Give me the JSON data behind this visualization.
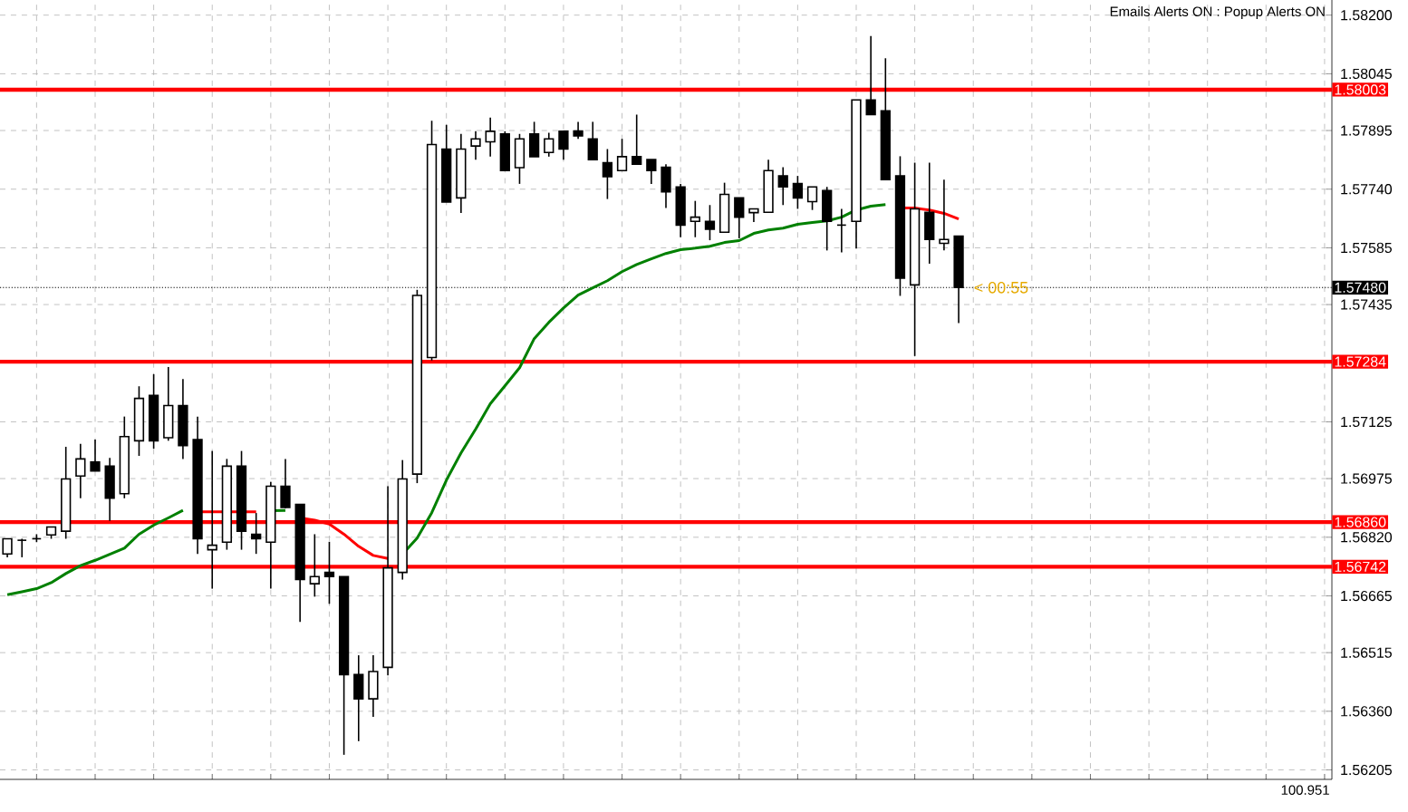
{
  "chart_data": {
    "type": "candlestick",
    "categories": [
      null,
      null,
      null,
      null,
      null,
      null,
      null,
      null,
      null,
      null,
      null,
      null,
      null,
      null,
      null,
      null,
      null,
      null,
      null,
      null,
      null,
      null,
      null,
      null,
      null,
      null,
      null,
      null,
      null,
      null,
      null,
      null,
      null,
      null,
      null,
      null,
      null,
      null,
      null,
      null,
      null,
      null,
      null,
      null,
      null,
      null,
      null,
      null,
      null,
      null,
      null,
      null,
      null,
      null,
      null,
      null,
      null,
      null,
      null,
      null,
      null,
      null,
      null,
      null,
      null,
      null,
      null,
      null,
      null,
      null,
      null,
      null,
      null,
      null,
      null,
      null,
      null,
      null,
      null,
      null,
      null,
      null,
      null,
      null,
      null,
      null,
      null,
      null,
      null,
      null,
      null
    ],
    "ohlc": [
      [
        1.56776,
        1.56816,
        1.56767,
        1.56816
      ],
      [
        1.56812,
        1.56816,
        1.56767,
        1.56812
      ],
      [
        1.56816,
        1.56828,
        1.56807,
        1.56816
      ],
      [
        1.56826,
        1.56847,
        1.56816,
        1.56847
      ],
      [
        1.56836,
        1.57059,
        1.56816,
        1.56974
      ],
      [
        1.56982,
        1.57067,
        1.56923,
        1.57027
      ],
      [
        1.57019,
        1.57078,
        1.56995,
        1.56995
      ],
      [
        1.57008,
        1.5703,
        1.56863,
        1.56923
      ],
      [
        1.56935,
        1.57139,
        1.56923,
        1.57086
      ],
      [
        1.57075,
        1.57219,
        1.57035,
        1.57187
      ],
      [
        1.57195,
        1.57251,
        1.57054,
        1.57075
      ],
      [
        1.57083,
        1.5727,
        1.57075,
        1.57168
      ],
      [
        1.57168,
        1.57238,
        1.57027,
        1.57062
      ],
      [
        1.57078,
        1.57139,
        1.56776,
        1.56816
      ],
      [
        1.56787,
        1.57048,
        1.56684,
        1.56799
      ],
      [
        1.56807,
        1.57027,
        1.56787,
        1.57008
      ],
      [
        1.57008,
        1.57048,
        1.56787,
        1.56836
      ],
      [
        1.56828,
        1.56884,
        1.56776,
        1.56816
      ],
      [
        1.56807,
        1.56966,
        1.56684,
        1.56955
      ],
      [
        1.56955,
        1.57027,
        1.56896,
        1.56899
      ],
      [
        1.56907,
        1.56907,
        1.56596,
        1.56708
      ],
      [
        1.56697,
        1.56828,
        1.56663,
        1.56716
      ],
      [
        1.56727,
        1.56808,
        1.56644,
        1.56716
      ],
      [
        1.56716,
        1.56716,
        1.56245,
        1.56457
      ],
      [
        1.56457,
        1.56508,
        1.56281,
        1.56393
      ],
      [
        1.56393,
        1.56508,
        1.56345,
        1.56465
      ],
      [
        1.56476,
        1.56955,
        1.56455,
        1.56739
      ],
      [
        1.56727,
        1.57024,
        1.56708,
        1.56974
      ],
      [
        1.56987,
        1.57474,
        1.56963,
        1.57459
      ],
      [
        1.57295,
        1.57921,
        1.57287,
        1.57858
      ],
      [
        1.57846,
        1.5791,
        1.57706,
        1.57706
      ],
      [
        1.57717,
        1.57886,
        1.57677,
        1.57846
      ],
      [
        1.57854,
        1.57893,
        1.57818,
        1.57873
      ],
      [
        1.57865,
        1.57929,
        1.57826,
        1.57893
      ],
      [
        1.57886,
        1.57893,
        1.57789,
        1.57789
      ],
      [
        1.57797,
        1.57886,
        1.57754,
        1.57873
      ],
      [
        1.57886,
        1.57918,
        1.57826,
        1.57826
      ],
      [
        1.57837,
        1.57889,
        1.57826,
        1.57873
      ],
      [
        1.57893,
        1.57893,
        1.57818,
        1.57846
      ],
      [
        1.57894,
        1.57918,
        1.57873,
        1.57881
      ],
      [
        1.57873,
        1.57918,
        1.57818,
        1.57818
      ],
      [
        1.5781,
        1.57846,
        1.57714,
        1.57773
      ],
      [
        1.57789,
        1.57873,
        1.57789,
        1.57826
      ],
      [
        1.57826,
        1.57937,
        1.57806,
        1.57806
      ],
      [
        1.57818,
        1.57818,
        1.57754,
        1.57789
      ],
      [
        1.57798,
        1.57806,
        1.5769,
        1.57733
      ],
      [
        1.57746,
        1.57754,
        1.57613,
        1.57645
      ],
      [
        1.57655,
        1.57709,
        1.57613,
        1.57666
      ],
      [
        1.57655,
        1.57698,
        1.57605,
        1.57634
      ],
      [
        1.57626,
        1.57757,
        1.57626,
        1.57726
      ],
      [
        1.57717,
        1.57717,
        1.5761,
        1.57666
      ],
      [
        1.57678,
        1.57688,
        1.57653,
        1.57688
      ],
      [
        1.57679,
        1.57818,
        1.57679,
        1.57789
      ],
      [
        1.57775,
        1.57798,
        1.57698,
        1.57746
      ],
      [
        1.57755,
        1.57775,
        1.57688,
        1.57717
      ],
      [
        1.57707,
        1.57746,
        1.57685,
        1.57746
      ],
      [
        1.57736,
        1.57746,
        1.57578,
        1.57655
      ],
      [
        1.57645,
        1.57688,
        1.57573,
        1.57645
      ],
      [
        1.57655,
        1.57976,
        1.57583,
        1.57976
      ],
      [
        1.57976,
        1.58145,
        1.57937,
        1.57937
      ],
      [
        1.57947,
        1.58086,
        1.57765,
        1.57765
      ],
      [
        1.57775,
        1.57827,
        1.57458,
        1.57505
      ],
      [
        1.57487,
        1.5781,
        1.57299,
        1.57688
      ],
      [
        1.57679,
        1.5781,
        1.57543,
        1.57607
      ],
      [
        1.57597,
        1.57765,
        1.57578,
        1.57607
      ],
      [
        1.57616,
        1.57616,
        1.57386,
        1.5748
      ],
      null,
      null,
      null,
      null,
      null,
      null,
      null,
      null,
      null,
      null,
      null,
      null,
      null,
      null,
      null,
      null,
      null,
      null,
      null,
      null,
      null,
      null,
      null,
      null,
      null
    ],
    "series": [
      {
        "type": "line",
        "color": "#008000",
        "values": [
          1.56668,
          1.56676,
          1.56684,
          1.567,
          1.56724,
          1.56745,
          1.56759,
          1.56775,
          1.56791,
          1.56828,
          1.56852,
          1.56871,
          1.56891,
          null,
          null,
          null,
          null,
          null,
          1.5689,
          1.56891,
          null,
          null,
          null,
          null,
          null,
          null,
          null,
          1.56775,
          1.56818,
          1.56885,
          1.56971,
          1.57043,
          1.57106,
          1.57173,
          1.5722,
          1.57268,
          1.57345,
          1.57388,
          1.57426,
          1.5746,
          1.57479,
          1.57498,
          1.57522,
          1.57541,
          1.57556,
          1.5757,
          1.5758,
          1.57584,
          1.57589,
          1.57599,
          1.57604,
          1.57623,
          1.57632,
          1.57637,
          1.57647,
          1.57652,
          1.57656,
          1.57666,
          1.57685,
          1.57695,
          1.57699,
          null,
          null,
          null,
          null,
          null,
          null,
          null,
          null,
          null,
          null,
          null,
          null,
          null,
          null,
          null,
          null,
          null,
          null,
          null,
          null,
          null,
          null,
          null,
          null,
          null,
          null,
          null,
          null,
          null,
          null
        ]
      },
      {
        "type": "line",
        "color": "#ff0000",
        "values": [
          null,
          null,
          null,
          null,
          null,
          null,
          null,
          null,
          null,
          null,
          null,
          null,
          null,
          1.56887,
          1.56887,
          1.56887,
          1.56887,
          1.56887,
          null,
          null,
          1.56871,
          1.56865,
          1.56855,
          1.56828,
          1.56796,
          1.56772,
          1.56764,
          null,
          null,
          null,
          null,
          null,
          null,
          null,
          null,
          null,
          null,
          null,
          null,
          null,
          null,
          null,
          null,
          null,
          null,
          null,
          null,
          null,
          null,
          null,
          null,
          null,
          null,
          null,
          null,
          null,
          null,
          null,
          null,
          null,
          null,
          1.5769,
          1.5769,
          1.57685,
          1.57676,
          1.57661,
          null,
          null,
          null,
          null,
          null,
          null,
          null,
          null,
          null,
          null,
          null,
          null,
          null,
          null,
          null,
          null,
          null,
          null,
          null,
          null,
          null,
          null,
          null,
          null,
          null
        ]
      }
    ],
    "ylim": [
      1.5618,
      1.5824
    ],
    "yticks": [
      {
        "value": 1.582,
        "label": "1.58200"
      },
      {
        "value": 1.58045,
        "label": "1.58045"
      },
      {
        "value": 1.57895,
        "label": "1.57895"
      },
      {
        "value": 1.5774,
        "label": "1.57740"
      },
      {
        "value": 1.57585,
        "label": "1.57585"
      },
      {
        "value": 1.57435,
        "label": "1.57435"
      },
      {
        "value": 1.57125,
        "label": "1.57125"
      },
      {
        "value": 1.56975,
        "label": "1.56975"
      },
      {
        "value": 1.5682,
        "label": "1.56820"
      },
      {
        "value": 1.56665,
        "label": "1.56665"
      },
      {
        "value": 1.56515,
        "label": "1.56515"
      },
      {
        "value": 1.5636,
        "label": "1.56360"
      },
      {
        "value": 1.56205,
        "label": "1.56205"
      }
    ],
    "grid": true,
    "ref_lines": [
      {
        "axis": "y",
        "value": 1.58003,
        "label": "1.58003",
        "color": "#ff0000"
      },
      {
        "axis": "y",
        "value": 1.57284,
        "label": "1.57284",
        "color": "#ff0000"
      },
      {
        "axis": "y",
        "value": 1.5686,
        "label": "1.56860",
        "color": "#ff0000"
      },
      {
        "axis": "y",
        "value": 1.56742,
        "label": "1.56742",
        "color": "#ff0000"
      },
      {
        "axis": "y",
        "value": 1.5748,
        "label": "1.57480",
        "color": "#000000",
        "line_style": "dotted"
      }
    ],
    "annotations": [
      "Emails Alerts ON : Popup Alerts ON",
      {
        "text": "< 00:55",
        "y": 1.5748
      },
      "100.951"
    ]
  }
}
